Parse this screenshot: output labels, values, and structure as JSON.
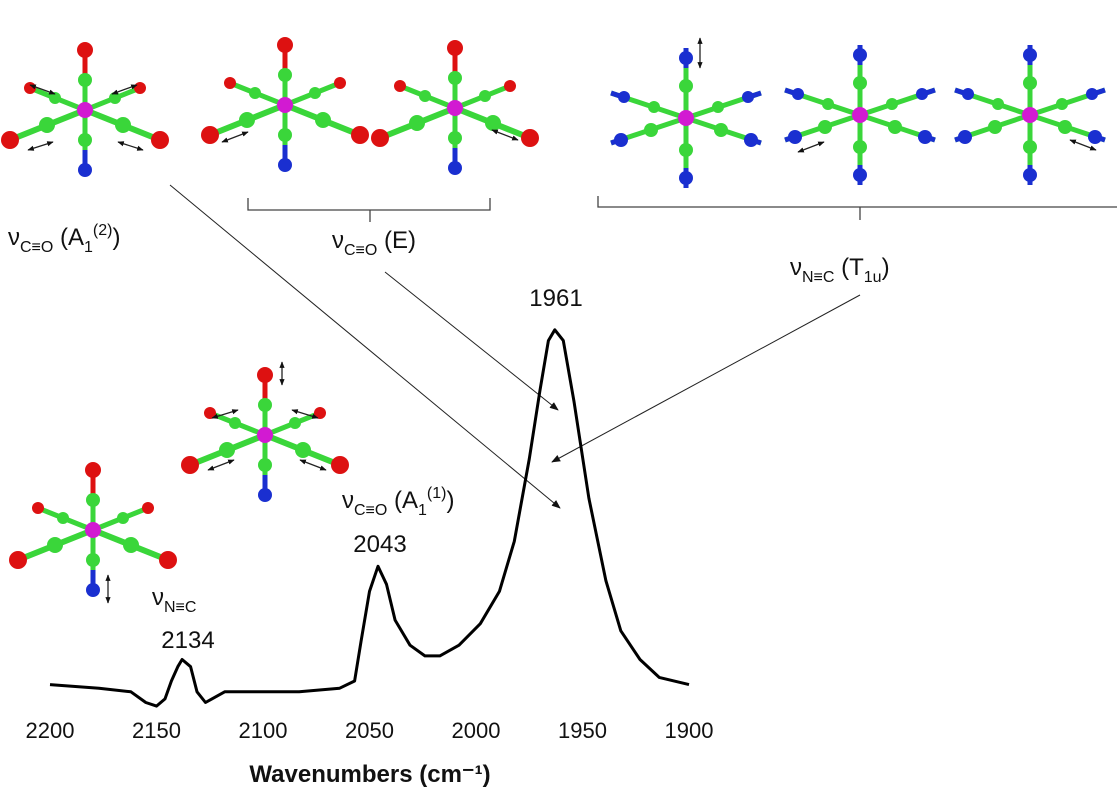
{
  "chart_data": {
    "type": "line",
    "x": [
      2200,
      2177,
      2162,
      2155,
      2150,
      2146,
      2143,
      2140,
      2138,
      2134,
      2131,
      2127,
      2124,
      2118,
      2101,
      2083,
      2064,
      2057,
      2054,
      2050,
      2046,
      2042,
      2038,
      2031,
      2024,
      2017,
      2008,
      1998,
      1989,
      1982,
      1975,
      1970,
      1966,
      1963,
      1959,
      1954,
      1947,
      1939,
      1932,
      1923,
      1914,
      1900
    ],
    "values": [
      0.01,
      0,
      -0.01,
      -0.04,
      -0.05,
      -0.03,
      0.02,
      0.06,
      0.08,
      0.06,
      -0.01,
      -0.04,
      -0.03,
      -0.01,
      -0.01,
      -0.01,
      0,
      0.02,
      0.13,
      0.27,
      0.34,
      0.29,
      0.19,
      0.12,
      0.09,
      0.09,
      0.12,
      0.18,
      0.27,
      0.41,
      0.64,
      0.83,
      0.97,
      1.0,
      0.97,
      0.8,
      0.53,
      0.3,
      0.16,
      0.08,
      0.03,
      0.01
    ],
    "color": "#000000",
    "xlim": [
      2200,
      1900
    ],
    "xticks": [
      2200,
      2150,
      2100,
      2050,
      2000,
      1950,
      1900
    ],
    "ylim": [
      -0.1,
      1.1
    ],
    "xlabel": "Wavenumbers (cm⁻¹)",
    "peak_labels": [
      "2134",
      "2043",
      "1961"
    ],
    "mode_labels": [
      [
        "ν",
        "C≡O",
        " (A",
        "1",
        "(2)",
        ")"
      ],
      [
        "ν",
        "C≡O",
        " (E)"
      ],
      [
        "ν",
        "N≡C",
        " (T",
        "1u",
        ")"
      ],
      [
        "ν",
        "C≡O",
        " (A",
        "1",
        "(1)",
        ")"
      ],
      [
        "ν",
        "N≡C"
      ]
    ]
  }
}
